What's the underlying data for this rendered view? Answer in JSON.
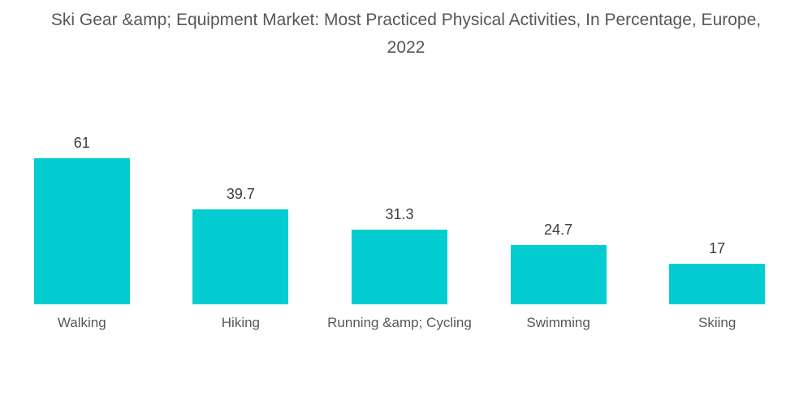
{
  "title": {
    "line1": "Ski Gear &amp; Equipment Market: Most Practiced Physical Activities, In Percentage, Europe,",
    "line2": "2022"
  },
  "colors": {
    "bar": "#04cdd1",
    "title_text": "#55575a",
    "value_text": "#3d3e40",
    "category_text": "#56585b",
    "background": "#ffffff"
  },
  "chart_data": {
    "type": "bar",
    "title": "Ski Gear &amp; Equipment Market: Most Practiced Physical Activities, In Percentage, Europe, 2022",
    "categories": [
      "Walking",
      "Hiking",
      "Running &amp; Cycling",
      "Swimming",
      "Skiing"
    ],
    "values": [
      61,
      39.7,
      31.3,
      24.7,
      17
    ],
    "value_labels": [
      "61",
      "39.7",
      "31.3",
      "24.7",
      "17"
    ],
    "unit": "percent",
    "xlabel": "",
    "ylabel": "",
    "ylim": [
      0,
      65
    ],
    "grid": false,
    "legend": "none",
    "bar_labels_position": "above",
    "axes_visible": false
  }
}
